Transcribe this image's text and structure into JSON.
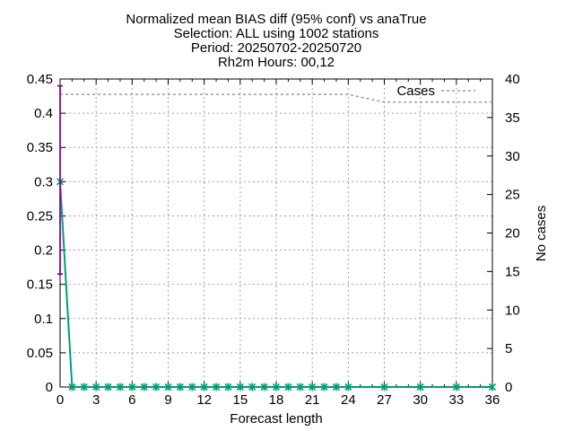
{
  "chart_data": {
    "type": "line",
    "title_lines": [
      "Normalized mean BIAS diff (95% conf) vs anaTrue",
      "Selection: ALL using  1002 stations",
      "Period: 20250702-20250720",
      "Rh2m   Hours: 00,12"
    ],
    "xlabel": "Forecast length",
    "ylabel": "",
    "y2label": "No cases",
    "xlim": [
      0,
      36
    ],
    "ylim": [
      0,
      0.45
    ],
    "y2lim": [
      0,
      40
    ],
    "xticks": [
      0,
      3,
      6,
      9,
      12,
      15,
      18,
      21,
      24,
      27,
      30,
      33,
      36
    ],
    "yticks": [
      0,
      0.05,
      0.1,
      0.15,
      0.2,
      0.25,
      0.3,
      0.35,
      0.4,
      0.45
    ],
    "ytick_labels": [
      "0",
      "0.05",
      "0.1",
      "0.15",
      "0.2",
      "0.25",
      "0.3",
      "0.35",
      "0.4",
      "0.45"
    ],
    "y2ticks": [
      0,
      5,
      10,
      15,
      20,
      25,
      30,
      35,
      40
    ],
    "grid": true,
    "legend_position": "top-right",
    "series": [
      {
        "color": "#009e73",
        "marker": "star",
        "x": [
          0,
          1,
          2,
          3,
          4,
          5,
          6,
          7,
          8,
          9,
          10,
          11,
          12,
          13,
          14,
          15,
          16,
          17,
          18,
          19,
          20,
          21,
          22,
          23,
          24,
          27,
          30,
          33,
          36
        ],
        "y": [
          0.3,
          0,
          0,
          0,
          0,
          0,
          0,
          0,
          0,
          0,
          0,
          0,
          0,
          0,
          0,
          0,
          0,
          0,
          0,
          0,
          0,
          0,
          0,
          0,
          0,
          0,
          0,
          0,
          0
        ]
      },
      {
        "name": "Cases",
        "axis": "y2",
        "color": "#888888",
        "dash": true,
        "x": [
          0,
          24,
          27,
          36
        ],
        "y": [
          38,
          38,
          37,
          37
        ]
      }
    ],
    "error_bars": [
      {
        "x": 0,
        "low": 0.165,
        "high": 0.44,
        "color": "#7b0b8c"
      }
    ]
  }
}
